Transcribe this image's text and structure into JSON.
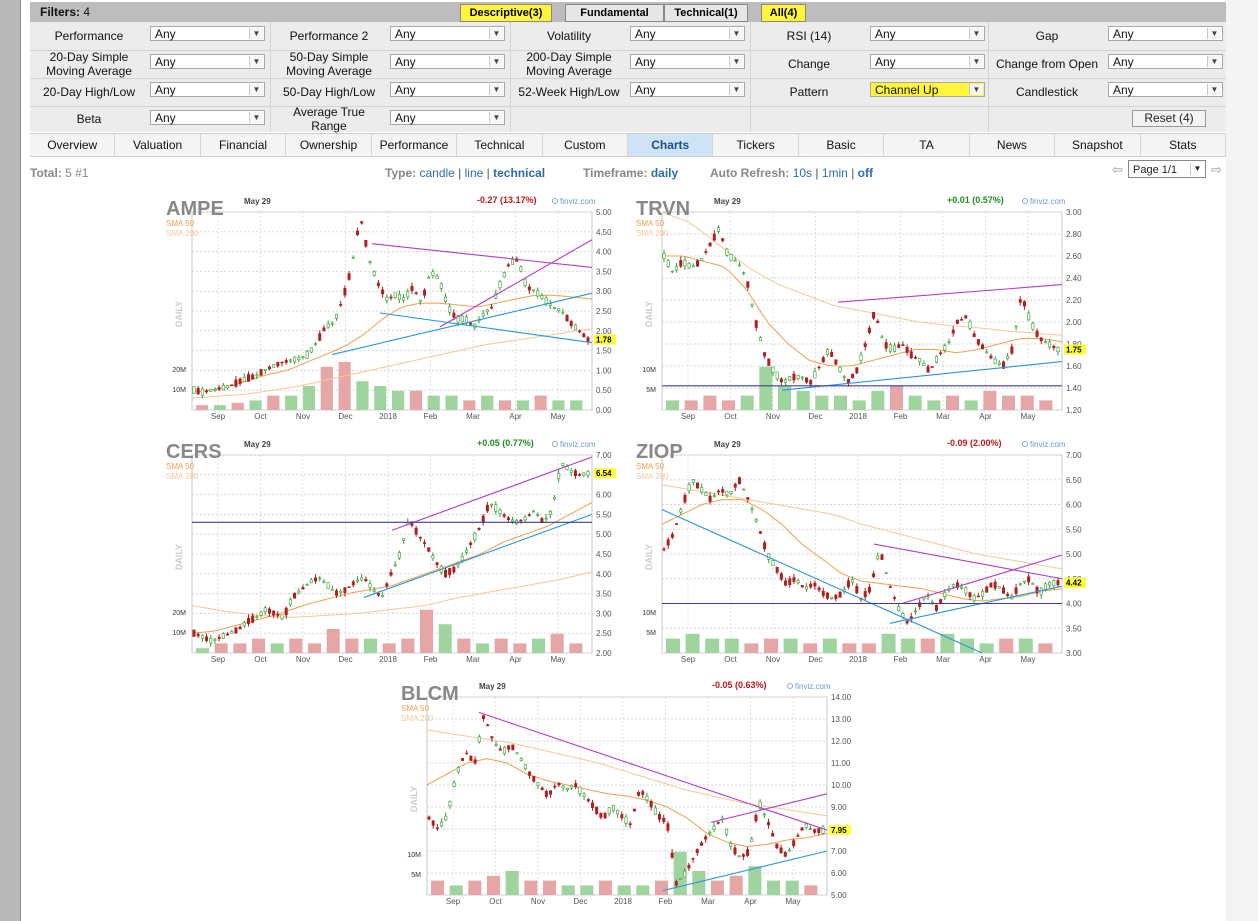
{
  "filters": {
    "label": "Filters:",
    "count": "4",
    "tabs": [
      {
        "label": "Descriptive(3)",
        "highlighted": true
      },
      {
        "label": "Fundamental",
        "highlighted": false
      },
      {
        "label": "Technical(1)",
        "highlighted": false
      },
      {
        "label": "All(4)",
        "highlighted": true
      }
    ],
    "rows": [
      [
        {
          "label": "Performance",
          "value": "Any"
        },
        {
          "label": "Performance 2",
          "value": "Any"
        },
        {
          "label": "Volatility",
          "value": "Any"
        },
        {
          "label": "RSI (14)",
          "value": "Any"
        },
        {
          "label": "Gap",
          "value": "Any"
        }
      ],
      [
        {
          "label": "20-Day Simple\nMoving Average",
          "value": "Any"
        },
        {
          "label": "50-Day Simple\nMoving Average",
          "value": "Any"
        },
        {
          "label": "200-Day Simple\nMoving Average",
          "value": "Any"
        },
        {
          "label": "Change",
          "value": "Any"
        },
        {
          "label": "Change from Open",
          "value": "Any"
        }
      ],
      [
        {
          "label": "20-Day High/Low",
          "value": "Any"
        },
        {
          "label": "50-Day High/Low",
          "value": "Any"
        },
        {
          "label": "52-Week High/Low",
          "value": "Any"
        },
        {
          "label": "Pattern",
          "value": "Channel Up",
          "highlighted": true
        },
        {
          "label": "Candlestick",
          "value": "Any"
        }
      ],
      [
        {
          "label": "Beta",
          "value": "Any"
        },
        {
          "label": "Average True\nRange",
          "value": "Any"
        }
      ]
    ],
    "reset_label": "Reset (4)"
  },
  "view_tabs": [
    {
      "label": "Overview"
    },
    {
      "label": "Valuation"
    },
    {
      "label": "Financial"
    },
    {
      "label": "Ownership"
    },
    {
      "label": "Performance"
    },
    {
      "label": "Technical"
    },
    {
      "label": "Custom"
    },
    {
      "label": "Charts",
      "active": true
    },
    {
      "label": "Tickers"
    },
    {
      "label": "Basic"
    },
    {
      "label": "TA"
    },
    {
      "label": "News"
    },
    {
      "label": "Snapshot"
    },
    {
      "label": "Stats"
    }
  ],
  "controls": {
    "total_label": "Total:",
    "total_value": "5 #1",
    "type_label": "Type:",
    "type_options": [
      "candle",
      "line",
      "technical"
    ],
    "type_selected": "technical",
    "timeframe_label": "Timeframe:",
    "timeframe_value": "daily",
    "autorefresh_label": "Auto Refresh:",
    "autorefresh_options": [
      "10s",
      "1min",
      "off"
    ],
    "page_label": "Page 1/1"
  },
  "colors": {
    "up": "#2fa12f",
    "down": "#b01f1f",
    "sma50": "#f0a052",
    "sma200": "#f4c898",
    "channel_upper": "#b43cc8",
    "channel_lower": "#2a96d8",
    "support": "#3c3ca0",
    "last_price_bg": "#ffff33",
    "highlight": "#fff53a",
    "active_tab": "#cfe3f6",
    "link": "#2c6cb3"
  },
  "charts": [
    {
      "ticker": "AMPE",
      "date": "May 29",
      "change": "-0.27 (13.17%)",
      "change_dir": "down",
      "sma50": "SMA 50",
      "sma200": "SMA 200",
      "side_label": "DAILY",
      "brand": "finviz.com",
      "last": 1.78,
      "last_label": "1.78",
      "y_ticks": [
        "5.00",
        "4.50",
        "4.00",
        "3.50",
        "3.00",
        "2.50",
        "2.00",
        "1.50",
        "1.00",
        "0.50",
        "0.00"
      ],
      "y_range": [
        0,
        5
      ],
      "months": [
        "Sep",
        "Oct",
        "Nov",
        "Dec",
        "2018",
        "Feb",
        "Mar",
        "Apr",
        "May"
      ],
      "vol_labels": [
        "20M",
        "10M"
      ],
      "price_path": [
        0.5,
        0.45,
        0.5,
        0.55,
        0.6,
        0.7,
        0.8,
        0.85,
        1.0,
        1.1,
        1.2,
        1.25,
        1.3,
        1.4,
        1.7,
        2.1,
        2.2,
        2.8,
        3.6,
        4.9,
        3.8,
        3.2,
        2.8,
        2.9,
        2.8,
        3.1,
        2.7,
        3.5,
        3.3,
        2.6,
        2.3,
        2.3,
        2.1,
        2.4,
        2.6,
        3.2,
        3.7,
        3.8,
        3.1,
        3.0,
        2.8,
        2.6,
        2.5,
        2.2,
        2.0,
        1.78
      ],
      "sma50_path": [
        0.45,
        0.5,
        0.6,
        0.75,
        0.9,
        1.0,
        1.2,
        1.4,
        1.6,
        1.9,
        2.3,
        2.6,
        2.7,
        2.7,
        2.65,
        2.6,
        2.7,
        2.8,
        2.9,
        2.9,
        2.85,
        2.8
      ],
      "sma200_path": [
        0.3,
        0.35,
        0.4,
        0.5,
        0.6,
        0.75,
        0.9,
        1.05,
        1.2,
        1.35,
        1.5,
        1.65,
        1.75,
        1.85,
        1.95,
        2.05
      ],
      "lines": [
        {
          "color": "channel_upper",
          "from": [
            0.45,
            4.2
          ],
          "to": [
            1.0,
            3.6
          ]
        },
        {
          "color": "channel_upper",
          "from": [
            0.62,
            2.1
          ],
          "to": [
            1.0,
            4.3
          ]
        },
        {
          "color": "channel_lower",
          "from": [
            0.47,
            2.45
          ],
          "to": [
            1.0,
            1.7
          ]
        },
        {
          "color": "channel_lower",
          "from": [
            0.35,
            1.4
          ],
          "to": [
            1.0,
            2.95
          ]
        }
      ],
      "volume": [
        0.1,
        0.1,
        0.15,
        0.2,
        0.3,
        0.3,
        0.5,
        0.9,
        1.0,
        0.6,
        0.5,
        0.4,
        0.4,
        0.3,
        0.3,
        0.2,
        0.3,
        0.2,
        0.2,
        0.3,
        0.2,
        0.2
      ]
    },
    {
      "ticker": "TRVN",
      "date": "May 29",
      "change": "+0.01 (0.57%)",
      "change_dir": "up",
      "sma50": "SMA 50",
      "sma200": "SMA 200",
      "side_label": "DAILY",
      "brand": "finviz.com",
      "last": 1.75,
      "last_label": "1.75",
      "y_ticks": [
        "3.00",
        "2.80",
        "2.60",
        "2.40",
        "2.20",
        "2.00",
        "1.80",
        "1.60",
        "1.40",
        "1.20"
      ],
      "y_range": [
        1.2,
        3.0
      ],
      "months": [
        "Sep",
        "Oct",
        "Nov",
        "Dec",
        "2018",
        "Feb",
        "Mar",
        "Apr",
        "May"
      ],
      "vol_labels": [
        "10M",
        "5M"
      ],
      "price_path": [
        2.6,
        2.45,
        2.55,
        2.5,
        2.55,
        2.7,
        2.85,
        2.6,
        2.55,
        2.4,
        2.0,
        1.7,
        1.55,
        1.45,
        1.5,
        1.5,
        1.45,
        1.6,
        1.75,
        1.6,
        1.45,
        1.55,
        1.8,
        2.1,
        1.8,
        1.75,
        1.8,
        1.7,
        1.65,
        1.55,
        1.7,
        1.8,
        2.0,
        2.05,
        1.85,
        1.75,
        1.65,
        1.6,
        1.75,
        2.25,
        2.0,
        1.85,
        1.8,
        1.75
      ],
      "sma50_path": [
        2.6,
        2.6,
        2.55,
        2.5,
        2.3,
        2.0,
        1.8,
        1.65,
        1.6,
        1.6,
        1.65,
        1.7,
        1.75,
        1.75,
        1.72,
        1.75,
        1.8,
        1.85,
        1.85,
        1.82
      ],
      "sma200_path": [
        3.0,
        2.9,
        2.7,
        2.5,
        2.35,
        2.25,
        2.15,
        2.1,
        2.05,
        2.0,
        1.97,
        1.95,
        1.92,
        1.9,
        1.88
      ],
      "lines": [
        {
          "color": "channel_upper",
          "from": [
            0.44,
            2.18
          ],
          "to": [
            1.0,
            2.34
          ]
        },
        {
          "color": "channel_lower",
          "from": [
            0.3,
            1.38
          ],
          "to": [
            1.0,
            1.64
          ]
        },
        {
          "color": "support",
          "from": [
            0.0,
            1.42
          ],
          "to": [
            1.0,
            1.42
          ]
        }
      ],
      "volume": [
        0.2,
        0.2,
        0.3,
        0.2,
        0.3,
        0.9,
        0.5,
        0.4,
        0.3,
        0.3,
        0.2,
        0.4,
        0.5,
        0.3,
        0.2,
        0.3,
        0.2,
        0.4,
        0.3,
        0.3,
        0.2
      ]
    },
    {
      "ticker": "CERS",
      "date": "May 29",
      "change": "+0.05 (0.77%)",
      "change_dir": "up",
      "sma50": "SMA 50",
      "sma200": "SMA 200",
      "side_label": "DAILY",
      "brand": "finviz.com",
      "last": 6.54,
      "last_label": "6.54",
      "y_ticks": [
        "7.00",
        "6.50",
        "6.00",
        "5.50",
        "5.00",
        "4.50",
        "4.00",
        "3.50",
        "3.00",
        "2.50",
        "2.00"
      ],
      "y_range": [
        2,
        7
      ],
      "months": [
        "Sep",
        "Oct",
        "Nov",
        "Dec",
        "2018",
        "Feb",
        "Mar",
        "Apr",
        "May"
      ],
      "vol_labels": [
        "20M",
        "10M"
      ],
      "price_path": [
        2.5,
        2.4,
        2.3,
        2.4,
        2.5,
        2.6,
        2.8,
        2.9,
        3.1,
        3.0,
        2.9,
        3.4,
        3.6,
        3.8,
        3.9,
        3.7,
        3.5,
        3.6,
        3.8,
        3.9,
        3.6,
        3.4,
        4.0,
        4.5,
        5.4,
        5.0,
        4.7,
        4.3,
        4.0,
        4.1,
        4.4,
        4.8,
        5.2,
        5.8,
        5.6,
        5.4,
        5.3,
        5.4,
        5.6,
        5.3,
        5.6,
        6.8,
        6.6,
        6.5,
        6.54
      ],
      "sma50_path": [
        2.5,
        2.55,
        2.7,
        2.85,
        3.0,
        3.2,
        3.35,
        3.5,
        3.6,
        3.7,
        3.9,
        4.1,
        4.3,
        4.5,
        4.8,
        5.0,
        5.2,
        5.5,
        5.8
      ],
      "sma200_path": [
        3.2,
        3.05,
        2.95,
        2.9,
        2.95,
        3.0,
        3.1,
        3.2,
        3.4,
        3.55,
        3.7,
        3.85,
        4.05
      ],
      "lines": [
        {
          "color": "channel_upper",
          "from": [
            0.5,
            5.1
          ],
          "to": [
            1.0,
            6.95
          ]
        },
        {
          "color": "channel_lower",
          "from": [
            0.43,
            3.4
          ],
          "to": [
            1.0,
            5.5
          ]
        },
        {
          "color": "support",
          "from": [
            0.0,
            5.3
          ],
          "to": [
            1.0,
            5.3
          ]
        }
      ],
      "volume": [
        0.1,
        0.2,
        0.2,
        0.3,
        0.2,
        0.3,
        0.2,
        0.5,
        0.3,
        0.3,
        0.2,
        0.3,
        0.9,
        0.6,
        0.3,
        0.2,
        0.3,
        0.2,
        0.3,
        0.4,
        0.2
      ]
    },
    {
      "ticker": "ZIOP",
      "date": "May 29",
      "change": "-0.09 (2.00%)",
      "change_dir": "down",
      "sma50": "SMA 50",
      "sma200": "SMA 200",
      "side_label": "DAILY",
      "brand": "finviz.com",
      "last": 4.42,
      "last_label": "4.42",
      "y_ticks": [
        "7.00",
        "6.50",
        "6.00",
        "5.50",
        "5.00",
        "4.50",
        "4.00",
        "3.50",
        "3.00"
      ],
      "y_range": [
        3,
        7
      ],
      "months": [
        "Sep",
        "Oct",
        "Nov",
        "Dec",
        "2018",
        "Feb",
        "Mar",
        "Apr",
        "May"
      ],
      "vol_labels": [
        "10M",
        "5M"
      ],
      "price_path": [
        5.1,
        5.4,
        6.0,
        6.5,
        6.3,
        6.1,
        6.3,
        6.2,
        6.5,
        6.1,
        5.6,
        5.0,
        4.7,
        4.4,
        4.5,
        4.3,
        4.4,
        4.2,
        4.1,
        4.2,
        4.5,
        4.1,
        4.3,
        5.1,
        4.4,
        3.9,
        3.6,
        3.9,
        4.2,
        3.9,
        4.2,
        4.4,
        4.3,
        4.1,
        4.2,
        4.4,
        4.3,
        4.1,
        4.4,
        4.5,
        4.2,
        4.4,
        4.42
      ],
      "sma50_path": [
        5.6,
        5.8,
        6.0,
        6.1,
        6.1,
        5.9,
        5.6,
        5.2,
        4.9,
        4.6,
        4.45,
        4.4,
        4.35,
        4.3,
        4.2,
        4.1,
        4.05,
        4.1,
        4.15,
        4.25,
        4.3
      ],
      "sma200_path": [
        6.4,
        6.3,
        6.2,
        6.1,
        6.0,
        5.9,
        5.8,
        5.6,
        5.45,
        5.3,
        5.15,
        5.0,
        4.9,
        4.8,
        4.7
      ],
      "lines": [
        {
          "color": "channel_upper",
          "from": [
            0.53,
            5.2
          ],
          "to": [
            1.0,
            4.5
          ]
        },
        {
          "color": "channel_upper",
          "from": [
            0.6,
            4.0
          ],
          "to": [
            1.0,
            4.98
          ]
        },
        {
          "color": "channel_lower",
          "from": [
            0.0,
            5.9
          ],
          "to": [
            0.8,
            3.0
          ]
        },
        {
          "color": "channel_lower",
          "from": [
            0.57,
            3.6
          ],
          "to": [
            1.0,
            4.35
          ]
        },
        {
          "color": "support",
          "from": [
            0.0,
            4.0
          ],
          "to": [
            1.0,
            4.0
          ]
        }
      ],
      "volume": [
        0.3,
        0.4,
        0.3,
        0.3,
        0.2,
        0.3,
        0.3,
        0.2,
        0.3,
        0.2,
        0.2,
        0.4,
        0.3,
        0.3,
        0.4,
        0.3,
        0.2,
        0.3,
        0.3,
        0.2
      ]
    },
    {
      "ticker": "BLCM",
      "date": "May 29",
      "change": "-0.05 (0.63%)",
      "change_dir": "down",
      "sma50": "SMA 50",
      "sma200": "SMA 200",
      "side_label": "DAILY",
      "brand": "finviz.com",
      "last": 7.95,
      "last_label": "7.95",
      "y_ticks": [
        "14.00",
        "13.00",
        "12.00",
        "11.00",
        "10.00",
        "9.00",
        "8.00",
        "7.00",
        "6.00",
        "5.00"
      ],
      "y_range": [
        5,
        14
      ],
      "months": [
        "Sep",
        "Oct",
        "Nov",
        "Dec",
        "2018",
        "Feb",
        "Mar",
        "Apr",
        "May"
      ],
      "vol_labels": [
        "10M",
        "5M"
      ],
      "price_path": [
        8.5,
        8.0,
        8.6,
        10.5,
        11.5,
        11.0,
        13.2,
        12.0,
        11.5,
        11.8,
        11.2,
        10.5,
        10.0,
        9.5,
        10.1,
        9.8,
        10.0,
        9.5,
        9.0,
        8.5,
        9.0,
        8.6,
        8.2,
        9.8,
        9.3,
        8.6,
        8.3,
        5.5,
        6.0,
        6.8,
        7.5,
        8.0,
        8.5,
        7.2,
        6.7,
        7.0,
        9.2,
        8.3,
        7.2,
        6.8,
        7.5,
        8.2,
        7.9,
        7.95
      ],
      "sma50_path": [
        10.0,
        10.5,
        11.0,
        11.2,
        11.0,
        10.5,
        10.2,
        10.0,
        9.8,
        9.6,
        9.5,
        9.3,
        9.0,
        8.5,
        7.8,
        7.4,
        7.2,
        7.3,
        7.5,
        7.6,
        7.8
      ],
      "sma200_path": [
        12.5,
        12.3,
        12.1,
        11.9,
        11.6,
        11.3,
        11.0,
        10.6,
        10.2,
        9.8,
        9.5,
        9.2,
        9.0,
        8.8,
        8.6
      ],
      "lines": [
        {
          "color": "channel_upper",
          "from": [
            0.13,
            13.3
          ],
          "to": [
            1.0,
            7.95
          ]
        },
        {
          "color": "channel_upper",
          "from": [
            0.71,
            8.3
          ],
          "to": [
            1.0,
            9.6
          ]
        },
        {
          "color": "channel_lower",
          "from": [
            0.59,
            5.2
          ],
          "to": [
            1.0,
            7.0
          ]
        }
      ],
      "volume": [
        0.3,
        0.2,
        0.3,
        0.4,
        0.5,
        0.3,
        0.3,
        0.2,
        0.2,
        0.3,
        0.2,
        0.2,
        0.3,
        0.9,
        0.5,
        0.3,
        0.4,
        0.6,
        0.3,
        0.3,
        0.2
      ]
    }
  ]
}
